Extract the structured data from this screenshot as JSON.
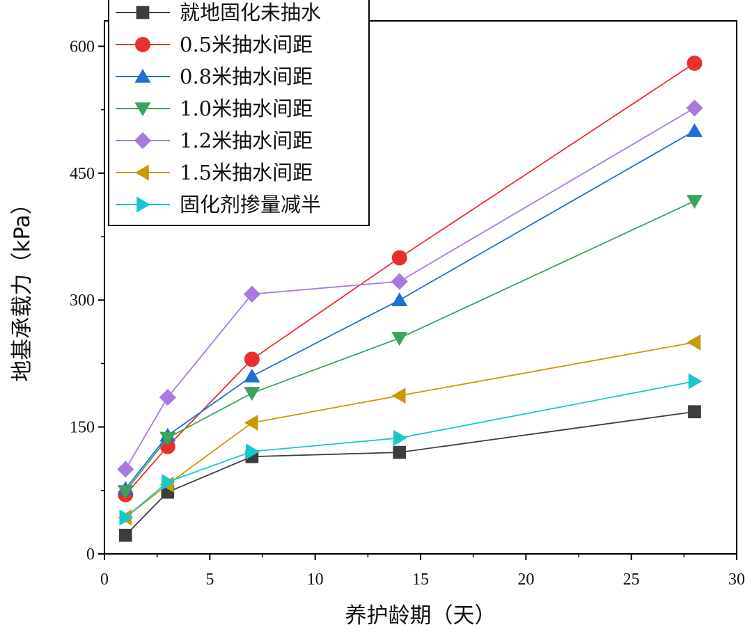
{
  "chart_data": {
    "type": "line",
    "title": "",
    "xlabel": "养护龄期（天）",
    "ylabel": "地基承载力（kPa）",
    "xlim": [
      0,
      30
    ],
    "ylim": [
      0,
      630
    ],
    "xticks": [
      0,
      5,
      10,
      15,
      20,
      25,
      30
    ],
    "yticks": [
      0,
      150,
      300,
      450,
      600
    ],
    "x": [
      1,
      3,
      7,
      14,
      28
    ],
    "legend_position": "top-left",
    "series": [
      {
        "name": "就地固化未抽水",
        "color": "#3d3d3d",
        "marker": "square",
        "values": [
          22,
          73,
          115,
          120,
          168
        ]
      },
      {
        "name": "0.5米抽水间距",
        "color": "#e8302c",
        "marker": "circle",
        "values": [
          70,
          127,
          230,
          350,
          580
        ]
      },
      {
        "name": "0.8米抽水间距",
        "color": "#1f6fd6",
        "marker": "triangle-up",
        "values": [
          77,
          140,
          210,
          300,
          500
        ]
      },
      {
        "name": "1.0米抽水间距",
        "color": "#3aa35c",
        "marker": "triangle-down",
        "values": [
          74,
          137,
          190,
          255,
          417
        ]
      },
      {
        "name": "1.2米抽水间距",
        "color": "#a77ae0",
        "marker": "diamond",
        "values": [
          100,
          185,
          307,
          322,
          527
        ]
      },
      {
        "name": "1.5米抽水间距",
        "color": "#c99a06",
        "marker": "triangle-left",
        "values": [
          43,
          82,
          155,
          187,
          250
        ]
      },
      {
        "name": "固化剂掺量减半",
        "color": "#18c7cc",
        "marker": "triangle-right",
        "values": [
          43,
          85,
          121,
          137,
          204
        ]
      }
    ]
  }
}
